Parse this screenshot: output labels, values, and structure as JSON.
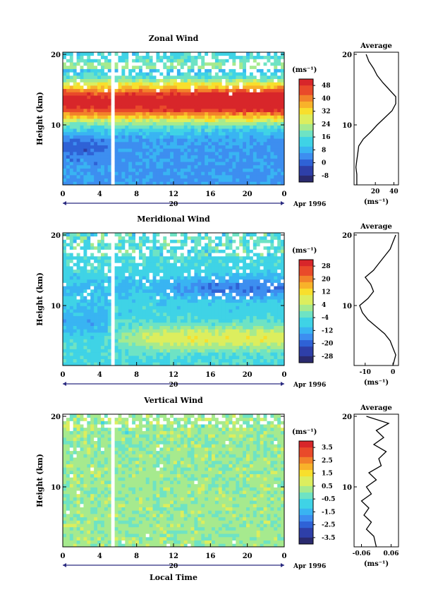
{
  "date_label": "Apr 1996",
  "xlabel": "Local Time",
  "chart_data": [
    {
      "type": "heatmap",
      "title": "Zonal Wind",
      "ylabel": "Height (km)",
      "xticks": [
        "0",
        "4",
        "8",
        "12",
        "16",
        "20",
        "0"
      ],
      "yticks": [
        "10",
        "20"
      ],
      "ylim": [
        1.5,
        20.3
      ],
      "day_label": "20",
      "units": "(ms⁻¹)",
      "colorbar_labels": [
        "48",
        "40",
        "32",
        "24",
        "16",
        "8",
        "0",
        "-8"
      ],
      "colorbar_range": [
        -8,
        52
      ],
      "field": {
        "kind": "zonal",
        "data_gap_hours": [
          5.3,
          5.8
        ]
      },
      "profile": {
        "title": "Average",
        "xticks": [
          "20",
          "40"
        ],
        "xlim": [
          -3,
          45
        ],
        "xunit": "(ms⁻¹)",
        "heights": [
          1.5,
          3,
          4,
          5,
          6,
          7,
          8,
          9,
          10,
          11,
          12,
          13,
          14,
          15,
          16,
          17,
          18,
          19,
          20
        ],
        "values": [
          0,
          0,
          -1,
          0,
          1,
          2,
          7,
          15,
          22,
          30,
          38,
          42,
          42,
          35,
          28,
          22,
          18,
          13,
          10
        ]
      }
    },
    {
      "type": "heatmap",
      "title": "Meridional Wind",
      "ylabel": "Height (km)",
      "xticks": [
        "0",
        "4",
        "8",
        "12",
        "16",
        "20",
        "0"
      ],
      "yticks": [
        "10",
        "20"
      ],
      "ylim": [
        1.5,
        20.3
      ],
      "day_label": "20",
      "units": "(ms⁻¹)",
      "colorbar_labels": [
        "28",
        "20",
        "12",
        "4",
        "-4",
        "-12",
        "-20",
        "-28"
      ],
      "colorbar_range": [
        -32,
        32
      ],
      "field": {
        "kind": "meridional",
        "data_gap_hours": [
          5.3,
          5.8
        ]
      },
      "profile": {
        "title": "Average",
        "xticks": [
          "-10",
          "0"
        ],
        "xlim": [
          -14,
          2
        ],
        "xunit": "(ms⁻¹)",
        "heights": [
          1.5,
          3,
          4,
          5,
          6,
          7,
          8,
          9,
          10,
          11,
          12,
          13,
          14,
          15,
          16,
          17,
          18,
          19,
          20
        ],
        "values": [
          0,
          1,
          0,
          -1,
          -3,
          -6,
          -9,
          -11,
          -12,
          -9,
          -7,
          -8,
          -10,
          -7,
          -5,
          -3,
          -1,
          0,
          1
        ]
      }
    },
    {
      "type": "heatmap",
      "title": "Vertical Wind",
      "ylabel": "Height (km)",
      "xticks": [
        "0",
        "4",
        "8",
        "12",
        "16",
        "20",
        "0"
      ],
      "yticks": [
        "10",
        "20"
      ],
      "ylim": [
        1.5,
        20.3
      ],
      "day_label": "20",
      "units": "(ms⁻¹)",
      "colorbar_labels": [
        "3.5",
        "2.5",
        "1.5",
        "0.5",
        "-0.5",
        "-1.5",
        "-2.5",
        "-3.5"
      ],
      "colorbar_range": [
        -4,
        4
      ],
      "field": {
        "kind": "vertical",
        "data_gap_hours": [
          5.3,
          5.8
        ]
      },
      "profile": {
        "title": "Average",
        "xticks": [
          "-0.06",
          "0.06"
        ],
        "xlim": [
          -0.09,
          0.09
        ],
        "xunit": "(ms⁻¹)",
        "heights": [
          1.5,
          3,
          4,
          5,
          6,
          7,
          8,
          9,
          10,
          11,
          12,
          13,
          14,
          15,
          16,
          17,
          18,
          19,
          20
        ],
        "values": [
          0.0,
          -0.01,
          -0.04,
          -0.02,
          -0.05,
          -0.03,
          -0.06,
          -0.02,
          -0.04,
          0.0,
          -0.03,
          0.02,
          0.01,
          0.04,
          -0.01,
          0.03,
          0.0,
          0.05,
          -0.04
        ]
      }
    }
  ]
}
